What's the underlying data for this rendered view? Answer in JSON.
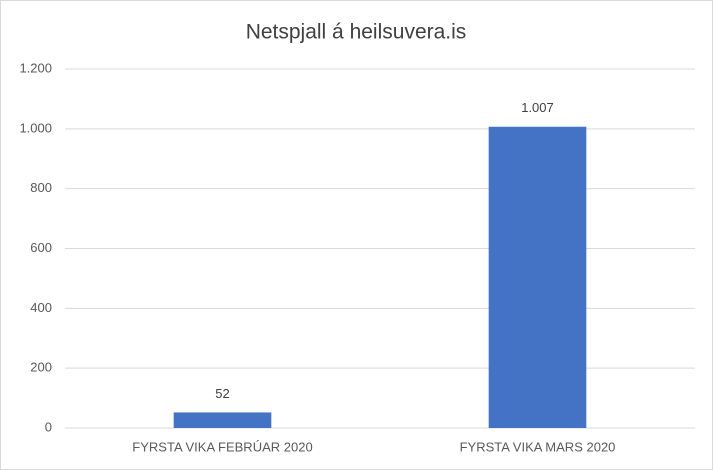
{
  "chart_data": {
    "type": "bar",
    "title": "Netspjall á heilsuvera.is",
    "categories": [
      "FYRSTA VIKA FEBRÚAR 2020",
      "FYRSTA VIKA MARS 2020"
    ],
    "values": [
      52,
      1007
    ],
    "value_labels": [
      "52",
      "1.007"
    ],
    "color": "#4472c4",
    "ylim": [
      0,
      1200
    ],
    "yticks": [
      0,
      200,
      400,
      600,
      800,
      {
        "value": 1000,
        "label": "1.000"
      },
      {
        "value": 1200,
        "label": "1.200"
      }
    ],
    "grid": true
  }
}
